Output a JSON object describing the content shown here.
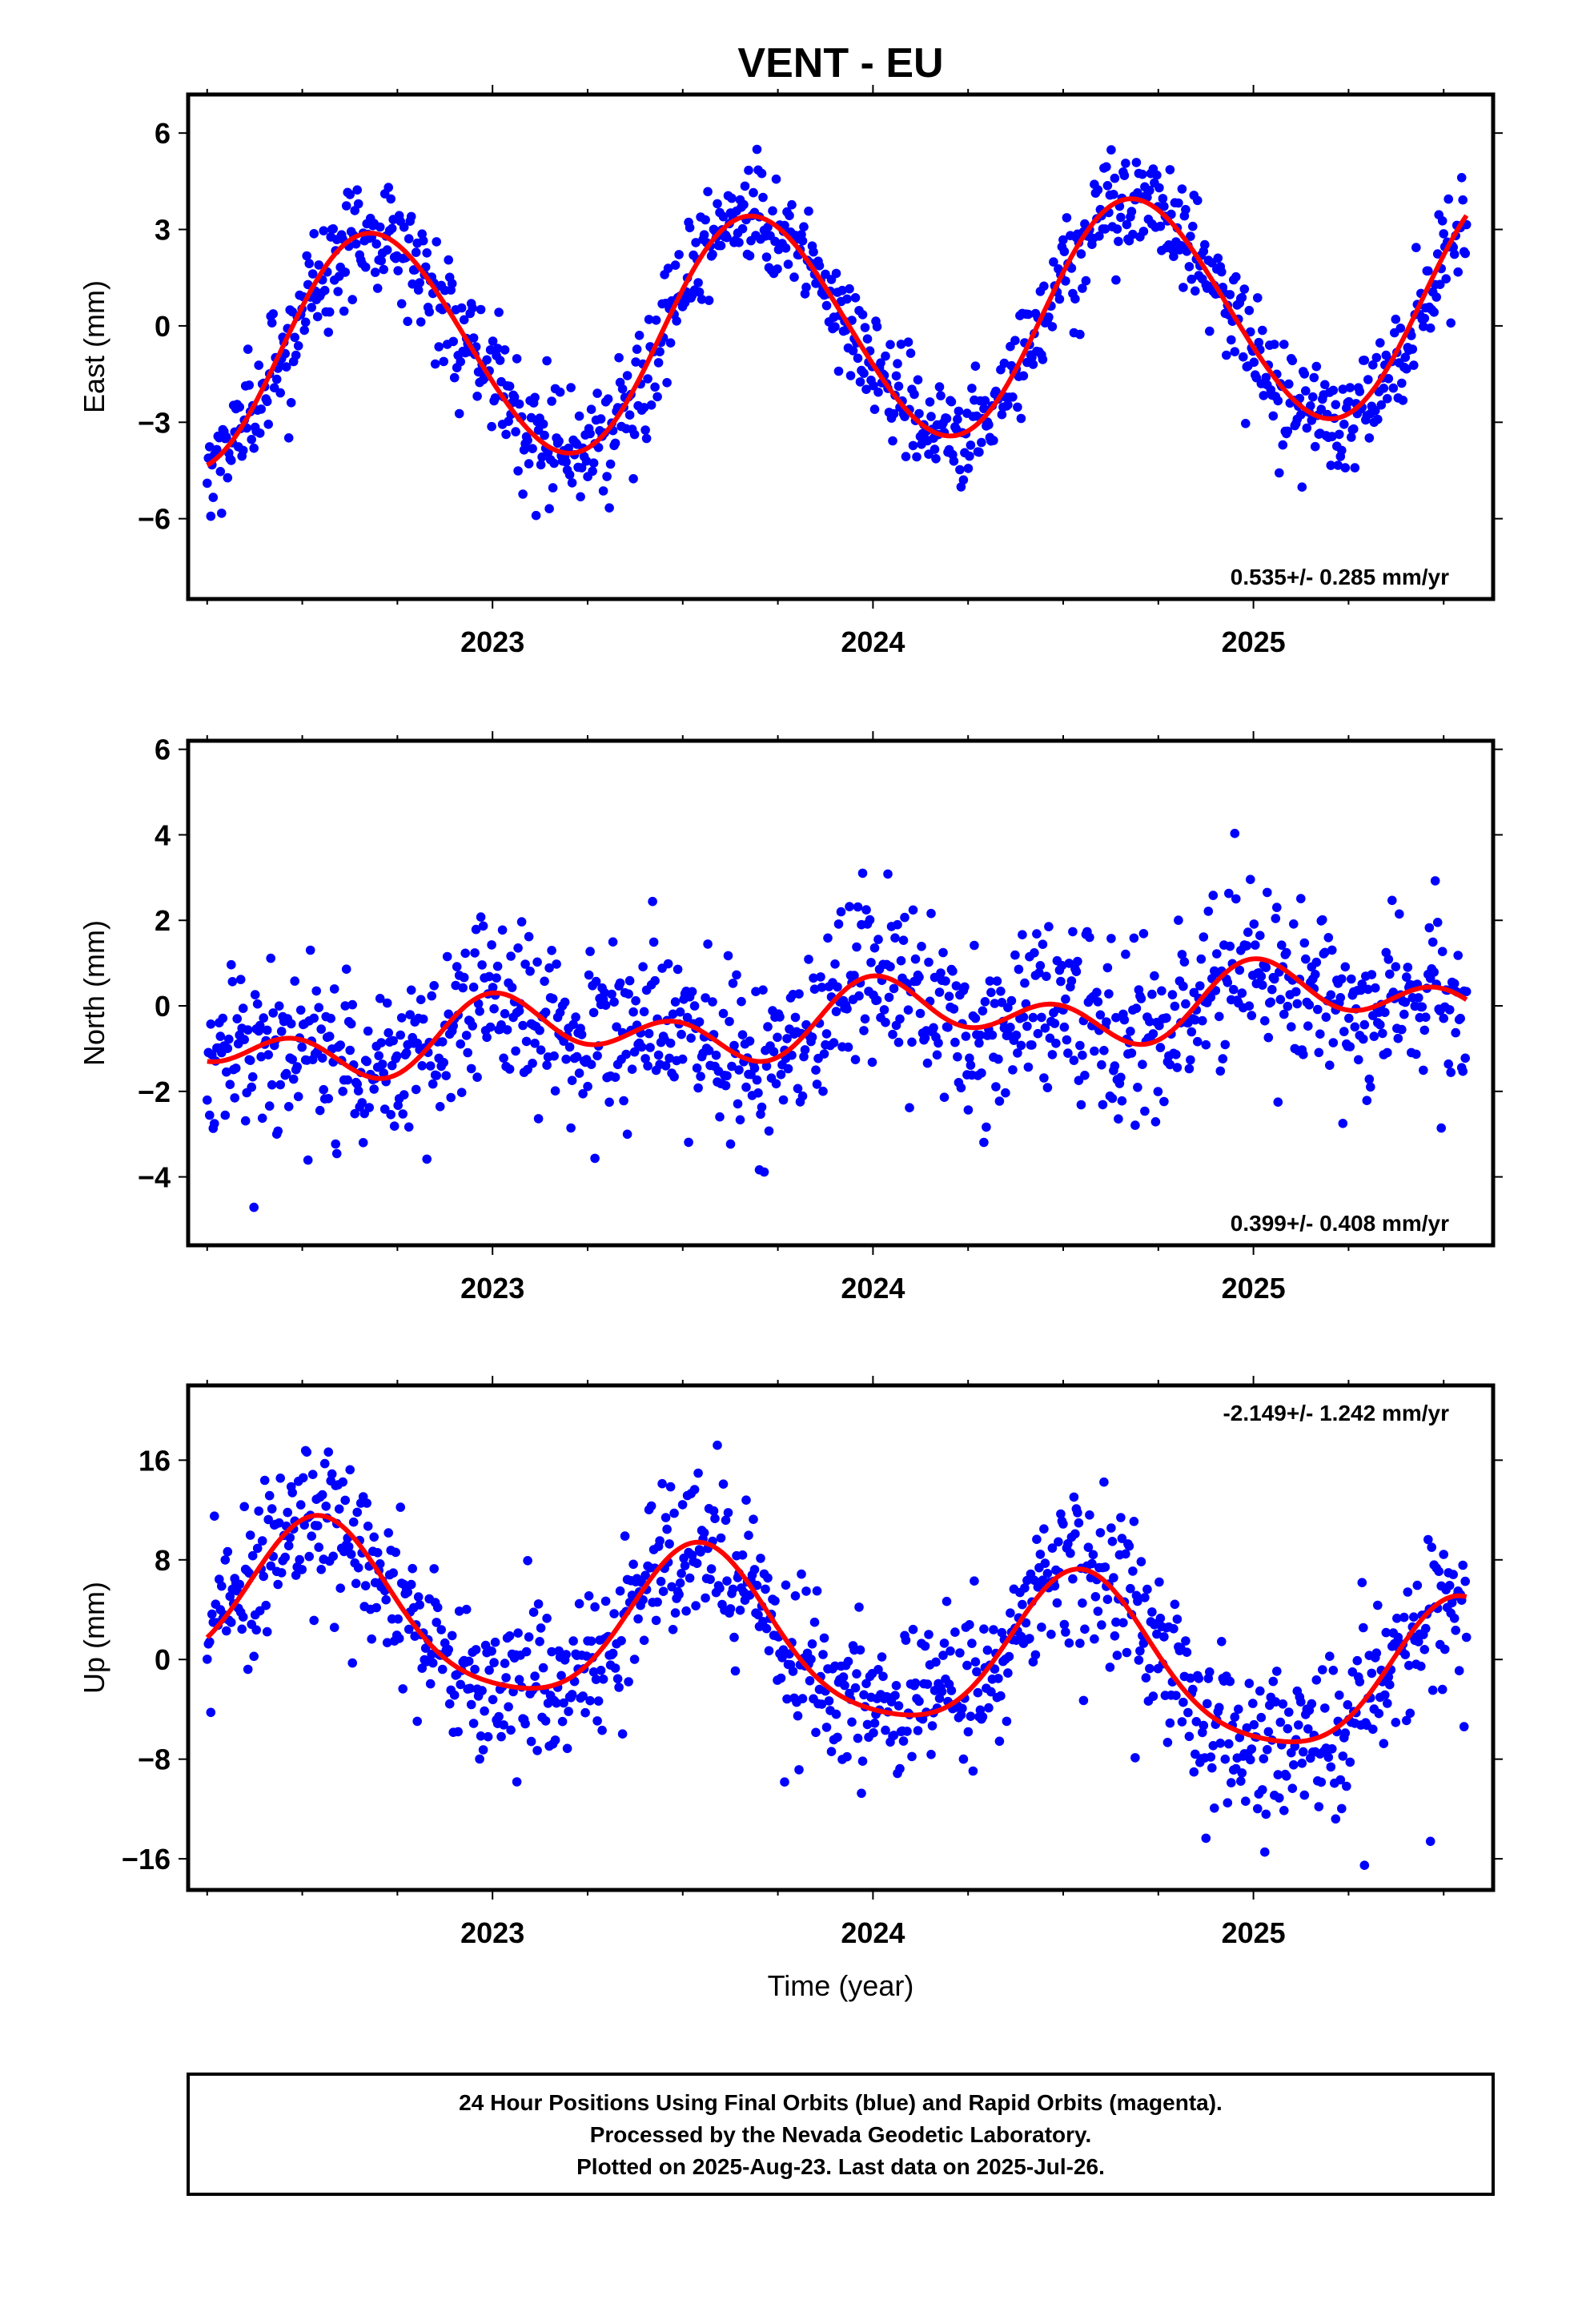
{
  "figure": {
    "title": "VENT - EU",
    "xlabel": "Time (year)",
    "footer": [
      "24 Hour Positions Using Final Orbits (blue) and Rapid Orbits (magenta).",
      "Processed by the Nevada Geodetic Laboratory.",
      "Plotted on 2025-Aug-23. Last data on 2025-Jul-26."
    ]
  },
  "colors": {
    "final_orbit_points": "#0000ff",
    "model_curve": "#ff0000",
    "frame": "#000000"
  },
  "chart_data": [
    {
      "type": "scatter",
      "ylabel": "East (mm)",
      "rate_label": "0.535+/- 0.285 mm/yr",
      "xlim": [
        2022.2,
        2025.63
      ],
      "ylim": [
        -8.5,
        7.2
      ],
      "x_ticks": [
        2023,
        2024,
        2025
      ],
      "y_ticks": [
        6,
        3,
        0,
        -3,
        -6
      ],
      "series": [
        {
          "role": "points",
          "x_start": 2022.25,
          "x_end": 2025.56,
          "count": 1050,
          "noise_sd": 0.85,
          "model": {
            "offset": 0.0,
            "rate": 0.535,
            "annual_sin": -3.3,
            "annual_cos": -1.3,
            "semi_sin": 0.15,
            "semi_cos": 0.1
          }
        },
        {
          "role": "fit-curve"
        }
      ]
    },
    {
      "type": "scatter",
      "ylabel": "North (mm)",
      "rate_label": "0.399+/- 0.408 mm/yr",
      "xlim": [
        2022.2,
        2025.63
      ],
      "ylim": [
        -5.6,
        6.2
      ],
      "x_ticks": [
        2023,
        2024,
        2025
      ],
      "y_ticks": [
        6,
        4,
        2,
        0,
        -2,
        -4
      ],
      "series": [
        {
          "role": "points",
          "x_start": 2022.25,
          "x_end": 2025.56,
          "count": 1050,
          "noise_sd": 0.95,
          "model": {
            "offset": -0.3,
            "rate": 0.399,
            "annual_sin": 0.25,
            "annual_cos": 0.45,
            "semi_sin": -0.1,
            "semi_cos": 0.55
          }
        },
        {
          "role": "fit-curve"
        }
      ]
    },
    {
      "type": "scatter",
      "ylabel": "Up (mm)",
      "rate_label": "-2.149+/- 1.242 mm/yr",
      "xlim": [
        2022.2,
        2025.63
      ],
      "ylim": [
        -18.5,
        22
      ],
      "x_ticks": [
        2023,
        2024,
        2025
      ],
      "y_ticks": [
        16,
        8,
        0,
        -8,
        -16
      ],
      "series": [
        {
          "role": "points",
          "x_start": 2022.25,
          "x_end": 2025.56,
          "count": 1050,
          "noise_sd": 3.2,
          "model": {
            "offset": 1.0,
            "rate": -2.149,
            "annual_sin": -2.0,
            "annual_cos": -6.0,
            "semi_sin": 0.5,
            "semi_cos": 1.0
          }
        },
        {
          "role": "fit-curve"
        }
      ]
    }
  ]
}
